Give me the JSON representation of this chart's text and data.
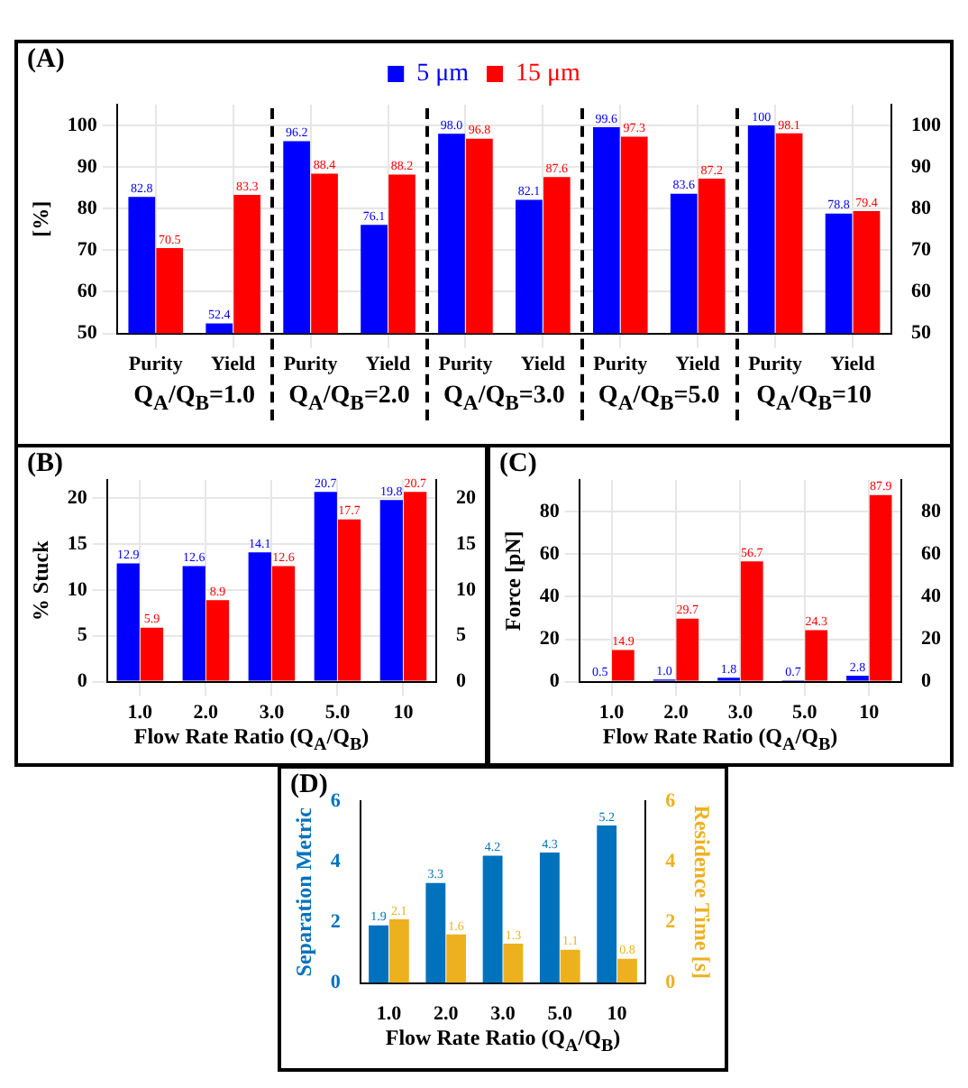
{
  "chart_data": [
    {
      "type": "bar",
      "title": "(A)",
      "ylabel": "[%]",
      "categories": [
        "Purity",
        "Yield",
        "Purity",
        "Yield",
        "Purity",
        "Yield",
        "Purity",
        "Yield",
        "Purity",
        "Yield"
      ],
      "series": [
        {
          "name": "5 μm",
          "color": "#0000ff",
          "values": [
            82.8,
            52.4,
            96.2,
            76.1,
            98.0,
            82.1,
            99.6,
            83.6,
            100,
            78.8
          ],
          "value_labels": [
            "82.8",
            "52.4",
            "96.2",
            "76.1",
            "98.0",
            "82.1",
            "99.6",
            "83.6",
            "100",
            "78.8"
          ]
        },
        {
          "name": "15 μm",
          "color": "#ff0000",
          "values": [
            70.5,
            83.3,
            88.4,
            88.2,
            96.8,
            87.6,
            97.3,
            87.2,
            98.1,
            79.4
          ],
          "value_labels": [
            "70.5",
            "83.3",
            "88.4",
            "88.2",
            "96.8",
            "87.6",
            "97.3",
            "87.2",
            "98.1",
            "79.4"
          ]
        }
      ],
      "annotations": [
        "Q$_{A}$/Q$_{B}$=1.0",
        "Q$_{A}$/Q$_{B}$=2.0",
        "Q$_{A}$/Q$_{B}$=3.0",
        "Q$_{A}$/Q$_{B}$=5.0",
        "Q$_{A}$/Q$_{B}$=10"
      ],
      "ylim": [
        50,
        105
      ],
      "yticks": [
        50,
        60,
        70,
        80,
        90,
        100
      ],
      "y2lim": [
        50,
        105
      ],
      "y2ticks": [
        50,
        60,
        70,
        80,
        90,
        100
      ],
      "grid": true,
      "legend": "top"
    },
    {
      "type": "bar",
      "title": "(B)",
      "ylabel": "% Stuck",
      "xlabel": "Flow  Rate Ratio (Q$_{A}$/Q$_{B}$)",
      "categories": [
        "1.0",
        "2.0",
        "3.0",
        "5.0",
        "10"
      ],
      "series": [
        {
          "color": "#0000ff",
          "values": [
            12.9,
            12.6,
            14.1,
            20.7,
            19.8
          ],
          "value_labels": [
            "12.9",
            "12.6",
            "14.1",
            "20.7",
            "19.8"
          ]
        },
        {
          "color": "#ff0000",
          "values": [
            5.9,
            8.9,
            12.6,
            17.7,
            20.7
          ],
          "value_labels": [
            "5.9",
            "8.9",
            "12.6",
            "17.7",
            "20.7"
          ]
        }
      ],
      "ylim": [
        0,
        22
      ],
      "yticks": [
        0,
        5,
        10,
        15,
        20
      ],
      "y2lim": [
        0,
        22
      ],
      "y2ticks": [
        0,
        5,
        10,
        15,
        20
      ],
      "grid": true
    },
    {
      "type": "bar",
      "title": "(C)",
      "ylabel": "Force [pN]",
      "xlabel": "Flow  Rate Ratio (Q$_{A}$/Q$_{B}$)",
      "categories": [
        "1.0",
        "2.0",
        "3.0",
        "5.0",
        "10"
      ],
      "series": [
        {
          "color": "#0000ff",
          "values": [
            0.5,
            1.0,
            1.8,
            0.7,
            2.8
          ],
          "value_labels": [
            "0.5",
            "1.0",
            "1.8",
            "0.7",
            "2.8"
          ]
        },
        {
          "color": "#ff0000",
          "values": [
            14.9,
            29.7,
            56.7,
            24.3,
            87.9
          ],
          "value_labels": [
            "14.9",
            "29.7",
            "56.7",
            "24.3",
            "87.9"
          ]
        }
      ],
      "ylim": [
        0,
        95
      ],
      "yticks": [
        0,
        20,
        40,
        60,
        80
      ],
      "y2lim": [
        0,
        95
      ],
      "y2ticks": [
        0,
        20,
        40,
        60,
        80
      ],
      "grid": true
    },
    {
      "type": "bar",
      "title": "(D)",
      "ylabel": "Separation Metric",
      "y2label": "Residence Time [s]",
      "xlabel": "Flow  Rate Ratio (Q$_{A}$/Q$_{B}$)",
      "categories": [
        "1.0",
        "2.0",
        "3.0",
        "5.0",
        "10"
      ],
      "series": [
        {
          "color": "#0072bd",
          "values": [
            1.9,
            3.3,
            4.2,
            4.3,
            5.2
          ],
          "value_labels": [
            "1.9",
            "3.3",
            "4.2",
            "4.3",
            "5.2"
          ]
        },
        {
          "color": "#edb120",
          "axis": "y2",
          "values": [
            2.1,
            1.6,
            1.3,
            1.1,
            0.8
          ],
          "value_labels": [
            "2.1",
            "1.6",
            "1.3",
            "1.1",
            "0.8"
          ]
        }
      ],
      "ylim": [
        0,
        6
      ],
      "yticks": [
        0,
        2,
        4,
        6
      ],
      "y2lim": [
        0,
        6
      ],
      "y2ticks": [
        0,
        2,
        4,
        6
      ]
    }
  ]
}
